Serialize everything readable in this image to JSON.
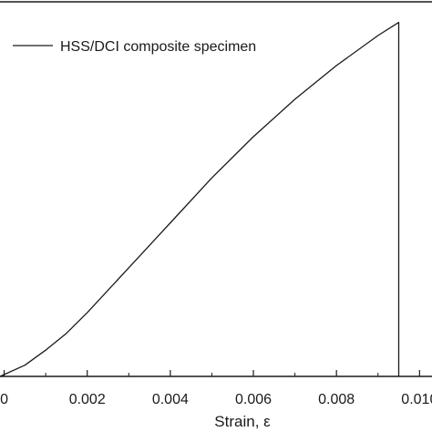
{
  "chart_data": {
    "type": "line",
    "title": "",
    "xlabel": "Strain, ε",
    "ylabel": "",
    "xlim": [
      -0.0001,
      0.0103
    ],
    "ylim": [
      0,
      1
    ],
    "x_ticks": [
      "0",
      "0.002",
      "0.004",
      "0.006",
      "0.008",
      "0.010"
    ],
    "x_tick_values": [
      0,
      0.002,
      0.004,
      0.006,
      0.008,
      0.01
    ],
    "grid": false,
    "legend_position": "top-left",
    "series": [
      {
        "name": "HSS/DCI composite specimen",
        "color": "#1a1a1a",
        "x": [
          -0.0001,
          0.0005,
          0.001,
          0.0015,
          0.002,
          0.003,
          0.004,
          0.005,
          0.006,
          0.007,
          0.008,
          0.009,
          0.0095,
          0.0095
        ],
        "y": [
          0.0,
          0.03,
          0.07,
          0.115,
          0.17,
          0.29,
          0.41,
          0.53,
          0.64,
          0.74,
          0.83,
          0.91,
          0.945,
          0.0
        ]
      }
    ]
  }
}
